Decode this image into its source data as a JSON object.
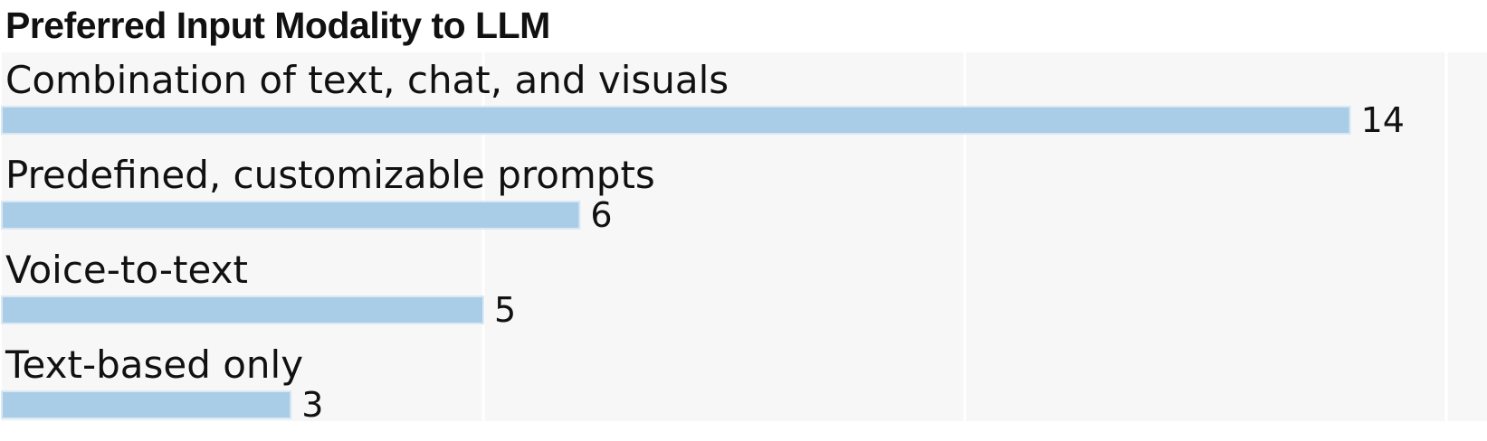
{
  "chart_data": {
    "type": "bar",
    "orientation": "horizontal",
    "title": "Preferred Input Modality to LLM",
    "categories": [
      "Combination of text, chat, and visuals",
      "Predefined, customizable prompts",
      "Voice-to-text",
      "Text-based only"
    ],
    "values": [
      14,
      6,
      5,
      3
    ],
    "xlim": [
      0,
      15
    ],
    "grid": true,
    "bar_color": "#a9cde6",
    "bar_border_color": "#d9e8f3",
    "panel_background": "#f7f7f7",
    "gridline_color": "#ffffff"
  }
}
